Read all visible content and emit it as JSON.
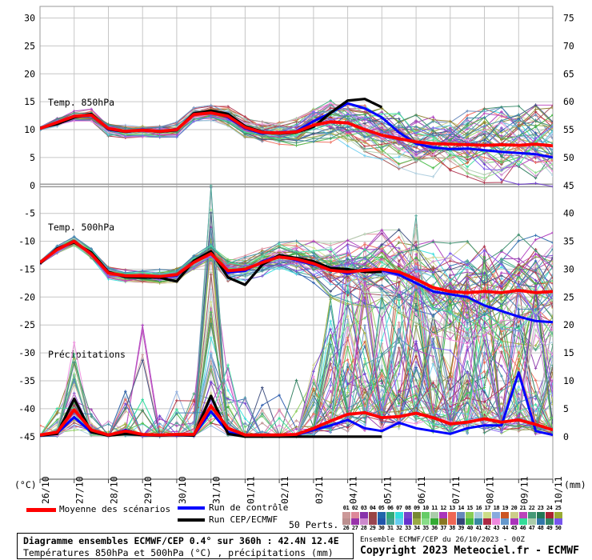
{
  "panel_labels": {
    "t850": "Temp. 850hPa",
    "t500": "Temp. 500hPa",
    "precip": "Précipitations"
  },
  "axis_units": {
    "left": "(°C)",
    "right": "(mm)"
  },
  "legend": {
    "mean": {
      "label": "Moyenne des scénarios",
      "color": "#ff0000"
    },
    "control": {
      "label": "Run de contrôle",
      "color": "#0000ff"
    },
    "cep": {
      "label": "Run CEP/ECMWF",
      "color": "#000000"
    },
    "perts_label": "50 Perts."
  },
  "pert_strip": {
    "top_numbers": [
      "01",
      "02",
      "03",
      "04",
      "05",
      "06",
      "07",
      "08",
      "09",
      "10",
      "11",
      "12",
      "13",
      "14",
      "15",
      "16",
      "17",
      "18",
      "19",
      "20",
      "21",
      "22",
      "23",
      "24",
      "25"
    ],
    "bottom_numbers": [
      "26",
      "27",
      "28",
      "29",
      "30",
      "31",
      "32",
      "33",
      "34",
      "35",
      "36",
      "37",
      "38",
      "39",
      "40",
      "41",
      "42",
      "43",
      "44",
      "45",
      "46",
      "47",
      "48",
      "49",
      "50"
    ],
    "palette_top": [
      "#cc9999",
      "#dd8899",
      "#8833aa",
      "#994444",
      "#2266aa",
      "#33aa77",
      "#33dddd",
      "#7744cc",
      "#778833",
      "#66cc66",
      "#aaccaa",
      "#aa33bb",
      "#ee6655",
      "#6688bb",
      "#88cc55",
      "#aaccdd",
      "#ccdd88",
      "#88aadd",
      "#cc5522",
      "#cccc88",
      "#bb44bb",
      "#449977",
      "#227755",
      "#aa2233",
      "#99aa33"
    ],
    "palette_bottom": [
      "#bb8f8f",
      "#9933aa",
      "#cc88cc",
      "#994450",
      "#2255aa",
      "#44a090",
      "#66ccee",
      "#6633cc",
      "#99aa44",
      "#88dd88",
      "#33aa33",
      "#887722",
      "#ee6655",
      "#334477",
      "#44bb44",
      "#3888a0",
      "#aa2844",
      "#ee88dd",
      "#6699cc",
      "#aa33bb",
      "#33dd99",
      "#aaccaa",
      "#3377aa",
      "#338866",
      "#7755ee"
    ]
  },
  "footer": {
    "box_line1": "Diagramme ensembles ECMWF/CEP 0.4° sur 360h : 42.4N 12.4E",
    "box_line2": "Températures 850hPa et 500hPa (°C) , précipitations (mm)",
    "right_line1": "Ensemble ECMWF/CEP du 26/10/2023 - 00Z",
    "right_line2": "Copyright 2023 Meteociel.fr - ECMWF"
  },
  "chart_data": {
    "type": "line",
    "step_hours": 12,
    "x_dates": [
      "26/10",
      "27/10",
      "28/10",
      "29/10",
      "30/10",
      "31/10",
      "01/11",
      "02/11",
      "03/11",
      "04/11",
      "05/11",
      "06/11",
      "07/11",
      "08/11",
      "09/11",
      "10/11"
    ],
    "left_axis": {
      "label": "(°C)",
      "ticks": [
        30,
        25,
        20,
        15,
        10,
        5,
        0,
        -5,
        -10,
        -15,
        -20,
        -25,
        -30,
        -35,
        -40,
        -45
      ],
      "zero_line_emphasized": true
    },
    "right_axis": {
      "label": "(mm)",
      "ticks": [
        75,
        70,
        65,
        60,
        55,
        50,
        45,
        40,
        35,
        30,
        25,
        20,
        15,
        10,
        5,
        0
      ]
    },
    "grid": true,
    "panels": [
      {
        "id": "t850",
        "label": "Temp. 850hPa",
        "unit": "°C",
        "series": [
          {
            "name": "Moyenne des scénarios",
            "color": "#ff0000",
            "values": [
              10.2,
              11.3,
              12.4,
              12.6,
              10.2,
              9.7,
              9.9,
              9.7,
              10.0,
              12.7,
              13.0,
              12.4,
              10.4,
              9.5,
              9.4,
              9.6,
              10.8,
              11.4,
              11.2,
              10.0,
              9.0,
              8.4,
              7.8,
              7.5,
              7.4,
              7.3,
              7.2,
              7.3,
              7.2,
              7.4,
              7.1
            ]
          },
          {
            "name": "Run de contrôle",
            "color": "#0000ff",
            "values": [
              10.3,
              11.1,
              12.2,
              12.7,
              10.0,
              9.6,
              10.0,
              9.6,
              10.1,
              12.6,
              13.2,
              12.2,
              10.2,
              9.3,
              9.5,
              9.7,
              11.5,
              13.0,
              14.7,
              13.8,
              12.2,
              9.5,
              7.5,
              6.8,
              6.5,
              6.6,
              6.3,
              6.0,
              5.8,
              5.6,
              5.0
            ]
          },
          {
            "name": "Run CEP/ECMWF",
            "color": "#000000",
            "values": [
              10.3,
              11.0,
              12.2,
              12.8,
              10.1,
              9.6,
              9.9,
              9.6,
              9.9,
              12.9,
              13.4,
              12.8,
              10.6,
              9.6,
              9.3,
              9.5,
              10.5,
              13.0,
              15.2,
              15.5,
              14.0
            ]
          }
        ],
        "ensemble_spread": [
          0.4,
          0.6,
          0.7,
          0.8,
          1.0,
          1.0,
          0.9,
          0.9,
          1.0,
          0.9,
          1.0,
          1.3,
          1.4,
          1.4,
          1.5,
          1.8,
          2.2,
          2.8,
          3.2,
          3.6,
          3.8,
          4.0,
          4.2,
          4.4,
          4.6,
          4.8,
          5.0,
          5.0,
          5.2,
          5.2,
          5.4
        ]
      },
      {
        "id": "t500",
        "label": "Temp. 500hPa",
        "unit": "°C",
        "series": [
          {
            "name": "Moyenne des scénarios",
            "color": "#ff0000",
            "values": [
              -13.8,
              -11.5,
              -10.0,
              -12.3,
              -15.7,
              -16.2,
              -16.2,
              -16.3,
              -16.0,
              -13.8,
              -12.2,
              -15.3,
              -15.0,
              -13.8,
              -12.8,
              -13.2,
              -14.0,
              -15.2,
              -15.5,
              -15.2,
              -15.0,
              -15.5,
              -16.8,
              -18.3,
              -19.0,
              -19.2,
              -19.0,
              -19.2,
              -18.8,
              -19.2,
              -19.0
            ]
          },
          {
            "name": "Run de contrôle",
            "color": "#0000ff",
            "values": [
              -13.9,
              -11.4,
              -10.1,
              -12.2,
              -15.6,
              -16.3,
              -16.1,
              -16.4,
              -16.2,
              -13.6,
              -12.0,
              -15.6,
              -15.3,
              -13.6,
              -12.6,
              -13.4,
              -14.2,
              -15.0,
              -15.8,
              -15.0,
              -15.2,
              -16.0,
              -17.5,
              -19.0,
              -19.5,
              -20.0,
              -21.5,
              -22.5,
              -23.5,
              -24.3,
              -24.5
            ]
          },
          {
            "name": "Run CEP/ECMWF",
            "color": "#000000",
            "values": [
              -14.0,
              -11.3,
              -10.2,
              -12.0,
              -15.5,
              -16.4,
              -16.5,
              -16.5,
              -17.2,
              -13.5,
              -11.8,
              -16.5,
              -17.8,
              -14.2,
              -12.5,
              -13.0,
              -13.6,
              -14.8,
              -15.0,
              -15.5,
              -15.5
            ]
          }
        ],
        "ensemble_spread": [
          0.4,
          0.6,
          0.6,
          0.7,
          0.8,
          0.8,
          0.8,
          0.9,
          1.0,
          1.0,
          1.3,
          1.8,
          1.8,
          1.8,
          1.9,
          2.4,
          3.0,
          3.6,
          4.2,
          4.8,
          5.2,
          5.6,
          5.8,
          6.2,
          6.4,
          6.8,
          7.0,
          7.2,
          7.4,
          7.6,
          7.8
        ]
      },
      {
        "id": "precip",
        "label": "Précipitations",
        "unit": "mm",
        "series": [
          {
            "name": "Moyenne des scénarios",
            "color": "#ff0000",
            "values": [
              0.3,
              0.8,
              4.8,
              1.2,
              0.3,
              1.0,
              0.4,
              0.3,
              0.4,
              0.4,
              5.5,
              1.5,
              0.3,
              0.3,
              0.3,
              0.4,
              1.5,
              2.8,
              4.0,
              4.3,
              3.4,
              3.6,
              4.2,
              3.4,
              2.3,
              2.6,
              3.2,
              2.6,
              3.0,
              2.2,
              1.2
            ]
          },
          {
            "name": "Run de contrôle",
            "color": "#0000ff",
            "values": [
              0.2,
              0.6,
              3.5,
              0.8,
              0.2,
              1.2,
              0.3,
              0.2,
              0.3,
              0.2,
              4.5,
              0.8,
              0.1,
              0.1,
              0.2,
              0.3,
              1.2,
              2.0,
              3.0,
              1.5,
              1.0,
              2.5,
              1.5,
              1.0,
              0.5,
              1.5,
              2.0,
              2.0,
              11.5,
              1.0,
              0.3
            ]
          },
          {
            "name": "Run CEP/ECMWF",
            "color": "#000000",
            "values": [
              0.2,
              0.5,
              6.8,
              0.8,
              0.2,
              0.5,
              0.3,
              0.2,
              0.3,
              0.2,
              7.3,
              0.5,
              0.0,
              0.0,
              0.0,
              0.0,
              0.0,
              0.0,
              0.0,
              0.0,
              0.0
            ]
          }
        ],
        "member_spike_prob": [
          0.1,
          0.4,
          0.7,
          0.25,
          0.15,
          0.5,
          0.3,
          0.15,
          0.25,
          0.3,
          0.9,
          0.4,
          0.15,
          0.15,
          0.15,
          0.2,
          0.5,
          0.7,
          0.8,
          0.8,
          0.8,
          0.8,
          0.85,
          0.8,
          0.8,
          0.8,
          0.85,
          0.8,
          0.8,
          0.75,
          0.7
        ],
        "member_spike_max": [
          2,
          5,
          13,
          4,
          3,
          8,
          20,
          4,
          8,
          10,
          43,
          12,
          8,
          9,
          8,
          10,
          15,
          25,
          38,
          30,
          25,
          30,
          35,
          25,
          28,
          30,
          32,
          25,
          28,
          25,
          20
        ]
      }
    ],
    "members_count": 50
  }
}
